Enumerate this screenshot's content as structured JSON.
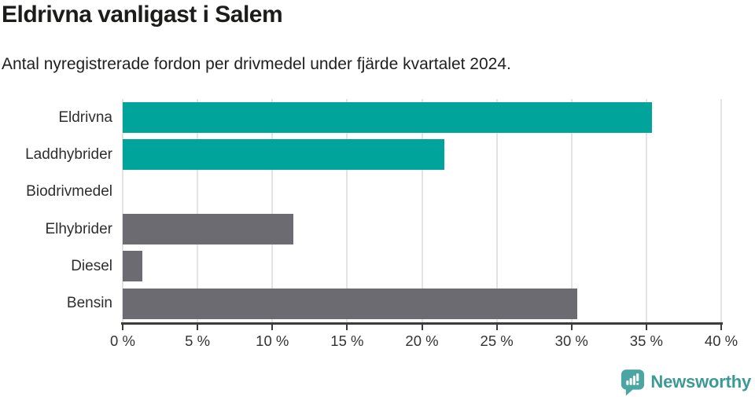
{
  "chart_data": {
    "type": "bar",
    "orientation": "horizontal",
    "title": "Eldrivna vanligast i Salem",
    "subtitle": "Antal nyregistrerade fordon per drivmedel under fjärde kvartalet 2024.",
    "categories": [
      "Eldrivna",
      "Laddhybrider",
      "Biodrivmedel",
      "Elhybrider",
      "Diesel",
      "Bensin"
    ],
    "values": [
      35.4,
      21.5,
      0,
      11.4,
      1.3,
      30.4
    ],
    "unit": "%",
    "bar_colors": [
      "#00A49B",
      "#00A49B",
      "#6C6B71",
      "#6C6B71",
      "#6C6B71",
      "#6C6B71"
    ],
    "xlabel": "",
    "ylabel": "",
    "xlim": [
      0,
      40
    ],
    "x_tick_values": [
      0,
      5,
      10,
      15,
      20,
      25,
      30,
      35,
      40
    ],
    "x_tick_labels": [
      "0 %",
      "5 %",
      "10 %",
      "15 %",
      "20 %",
      "25 %",
      "30 %",
      "35 %",
      "40 %"
    ],
    "grid": true,
    "legend": "none"
  },
  "colors": {
    "bar_teal": "#00A49B",
    "bar_gray": "#6C6B71",
    "axis": "#3C3C3C",
    "gridline": "#E3E3E3",
    "title_text": "#1C1D1B",
    "body_text": "#2E2E2E",
    "logo_icon": "#4BA5A2",
    "logo_text": "#3B9A97"
  },
  "footer": {
    "brand": "Newsworthy",
    "logo_icon_name": "newsworthy-speech-bubble-bar-chart"
  }
}
